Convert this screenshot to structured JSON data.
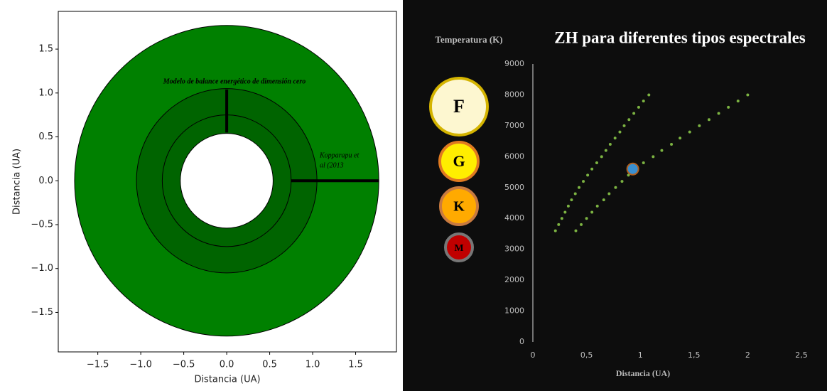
{
  "chart_data": [
    {
      "type": "rings",
      "x_label": "Distancia (UA)",
      "y_label": "Distancia (UA)",
      "xlim": [
        -1.96,
        1.975
      ],
      "ylim": [
        -1.95,
        1.93
      ],
      "xticks": [
        {
          "value": -1.5,
          "label": "−1.5"
        },
        {
          "value": -1.0,
          "label": "−1.0"
        },
        {
          "value": -0.5,
          "label": "−0.5"
        },
        {
          "value": 0,
          "label": "0.0"
        },
        {
          "value": 0.5,
          "label": "0.5"
        },
        {
          "value": 1.0,
          "label": "1.0"
        },
        {
          "value": 1.5,
          "label": "1.5"
        }
      ],
      "yticks": [
        {
          "value": -1.5,
          "label": "−1.5"
        },
        {
          "value": -1.0,
          "label": "−1.0"
        },
        {
          "value": -0.5,
          "label": "−0.5"
        },
        {
          "value": 0,
          "label": "0.0"
        },
        {
          "value": 0.5,
          "label": "0.5"
        },
        {
          "value": 1.0,
          "label": "1.0"
        },
        {
          "value": 1.5,
          "label": "1.5"
        }
      ],
      "circles": [
        {
          "r": 1.77,
          "color": "#008000"
        },
        {
          "r": 1.05,
          "color": "#006400"
        },
        {
          "r": 0.75,
          "color": "#006400"
        },
        {
          "r": 0.54,
          "color": "#ffffff"
        }
      ],
      "segments": [
        {
          "x": [
            0,
            0
          ],
          "y": [
            0.55,
            1.04
          ]
        },
        {
          "x": [
            0.75,
            1.77
          ],
          "y": [
            0,
            0
          ]
        }
      ],
      "annotations": [
        "Modelo de balance energético de dimensión cero",
        "Kopparapu et",
        "al (2013"
      ]
    },
    {
      "type": "scatter",
      "title": "ZH para diferentes tipos espectrales",
      "y_label": "Temperatura (K)",
      "x_label": "Distancia (UA)",
      "xlim": [
        0,
        2.5
      ],
      "ylim": [
        0,
        9000
      ],
      "xticks": [
        0,
        {
          "value": 0.5,
          "label": "0,5"
        },
        1,
        {
          "value": 1.5,
          "label": "1,5"
        },
        2,
        {
          "value": 2.5,
          "label": "2,5"
        }
      ],
      "yticks": [
        0,
        1000,
        2000,
        3000,
        4000,
        5000,
        6000,
        7000,
        8000,
        9000
      ],
      "series": [
        {
          "color": "#7cb342",
          "x": [
            0.21,
            0.24,
            0.27,
            0.3,
            0.33,
            0.36,
            0.395,
            0.43,
            0.47,
            0.51,
            0.55,
            0.595,
            0.64,
            0.68,
            0.72,
            0.765,
            0.81,
            0.85,
            0.895,
            0.94,
            0.985,
            1.03,
            1.08
          ],
          "values": [
            3600,
            3800,
            4000,
            4200,
            4400,
            4600,
            4800,
            5000,
            5200,
            5400,
            5600,
            5800,
            6000,
            6200,
            6400,
            6600,
            6800,
            7000,
            7200,
            7400,
            7600,
            7800,
            8000
          ]
        },
        {
          "color": "#7cb342",
          "x": [
            0.4,
            0.45,
            0.5,
            0.55,
            0.6,
            0.66,
            0.71,
            0.77,
            0.83,
            0.89,
            0.95,
            1.03,
            1.12,
            1.2,
            1.29,
            1.37,
            1.46,
            1.55,
            1.64,
            1.73,
            1.82,
            1.91,
            2.0
          ],
          "values": [
            3600,
            3800,
            4000,
            4200,
            4400,
            4600,
            4800,
            5000,
            5200,
            5400,
            5600,
            5800,
            6000,
            6200,
            6400,
            6600,
            6800,
            7000,
            7200,
            7400,
            7600,
            7800,
            8000
          ]
        }
      ],
      "marker": {
        "x": 0.93,
        "y": 5600,
        "color": "#3a8fd0"
      },
      "stars": [
        {
          "label": "F",
          "color": "#fdf7d0"
        },
        {
          "label": "G",
          "color": "#ffee00"
        },
        {
          "label": "K",
          "color": "#ffaa00"
        },
        {
          "label": "M",
          "color": "#c00000"
        }
      ]
    }
  ]
}
